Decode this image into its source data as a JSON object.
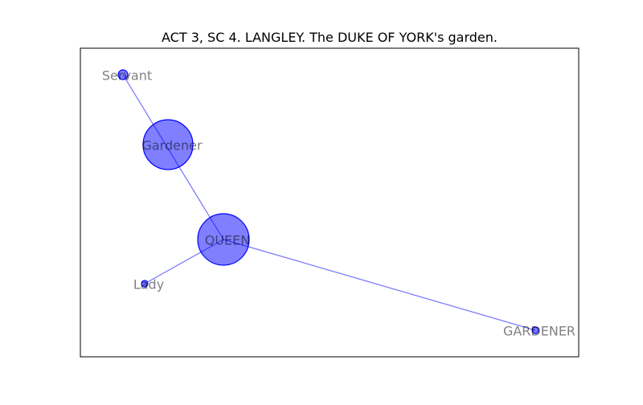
{
  "title": "ACT 3, SC 4. LANGLEY. The DUKE OF YORK's garden.",
  "colors": {
    "node": "#0000ff",
    "edge": "#0000ff",
    "frame": "#000000"
  },
  "nodes": [
    {
      "id": "servant",
      "label": "Servant"
    },
    {
      "id": "gardener",
      "label": "Gardener"
    },
    {
      "id": "queen",
      "label": "QUEEN"
    },
    {
      "id": "lady",
      "label": "Lady"
    },
    {
      "id": "gardener_caps",
      "label": "GARDENER"
    }
  ],
  "edges": [
    {
      "source": "servant",
      "target": "queen"
    },
    {
      "source": "queen",
      "target": "lady"
    },
    {
      "source": "queen",
      "target": "gardener_caps"
    }
  ]
}
